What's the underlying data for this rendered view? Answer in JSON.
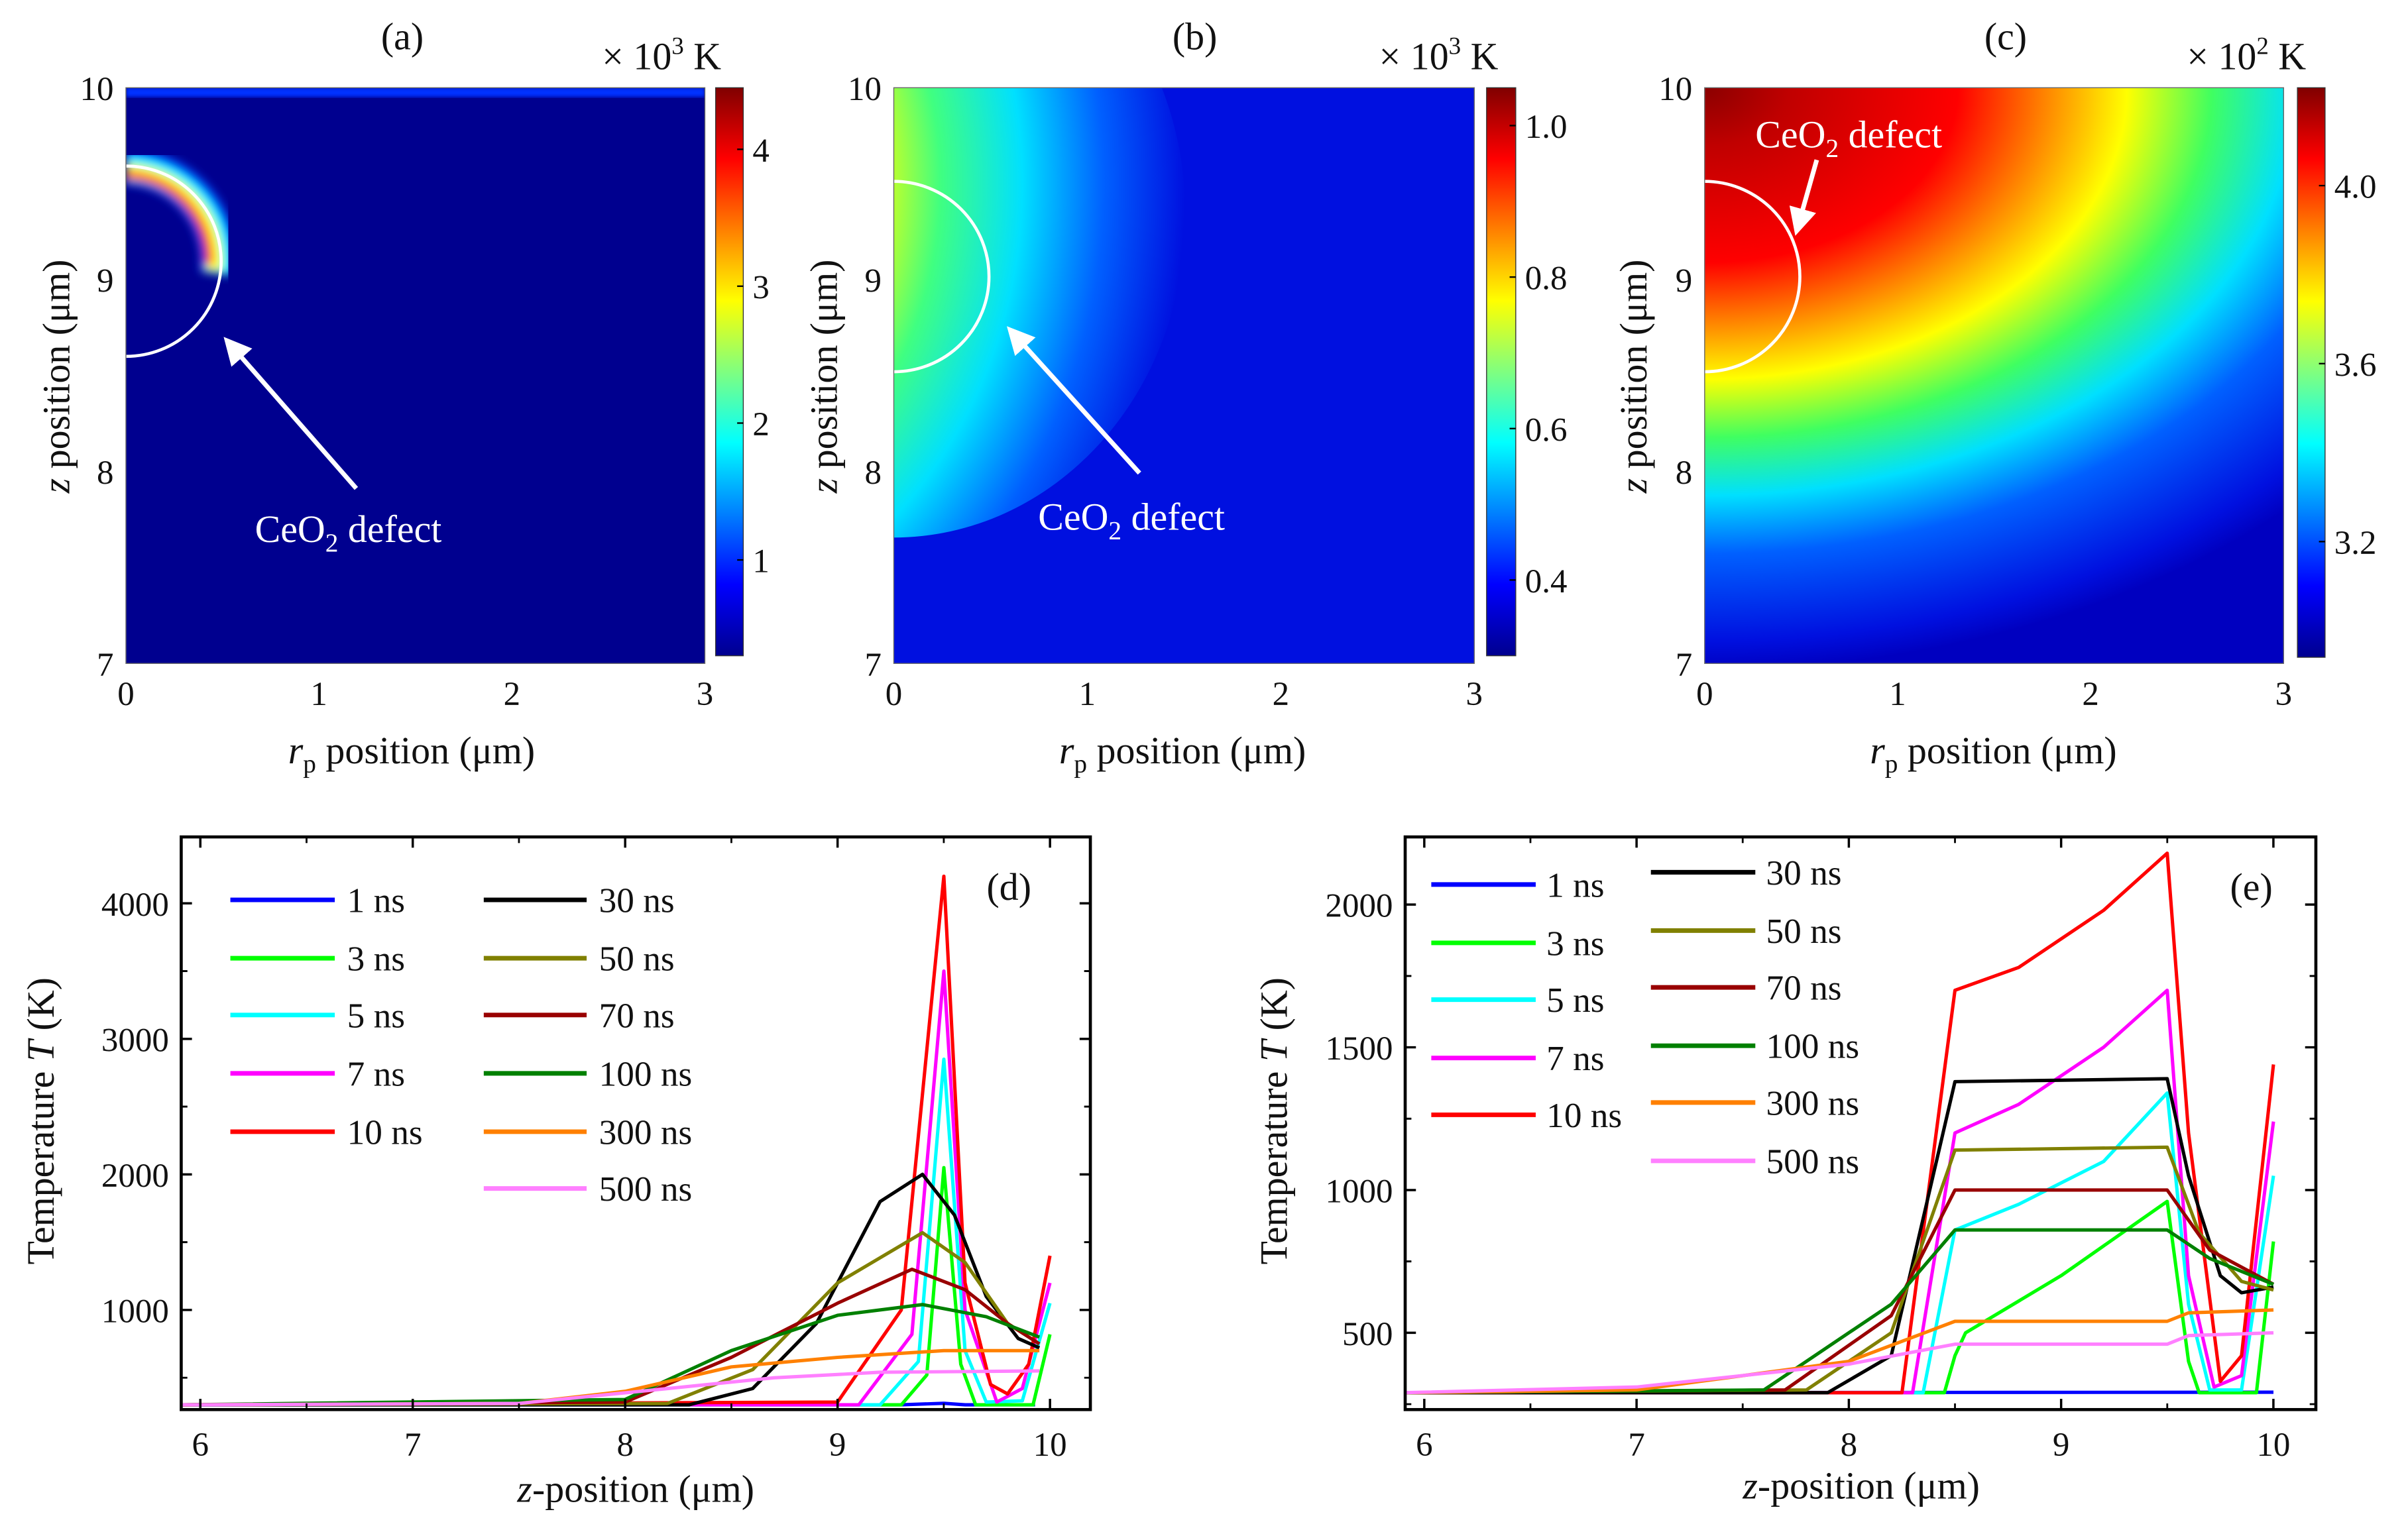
{
  "chart_data": [
    {
      "type": "heatmap",
      "panel": "(a)",
      "colorbar_unit": {
        "prefix": "× 10",
        "exp": "3",
        "suffix": " K"
      },
      "xlabel": {
        "var": "r",
        "sub": "p",
        "rest": " position (μm)"
      },
      "ylabel": {
        "var": "z",
        "rest": " position (μm)"
      },
      "xlim": [
        0,
        3
      ],
      "ylim": [
        7,
        10
      ],
      "xticks": [
        "0",
        "1",
        "2",
        "3"
      ],
      "yticks": [
        "7",
        "8",
        "9",
        "10"
      ],
      "colorbar_range": [
        0.3,
        4.45
      ],
      "colorbar_ticks": [
        "1",
        "2",
        "3",
        "4"
      ],
      "colorbar_tick_values": [
        1,
        2,
        3,
        4
      ],
      "annotation": {
        "pre": "CeO",
        "sub": "2",
        "post": " defect"
      },
      "defect_circle": {
        "center_r": 0,
        "center_z": 9.1,
        "radius": 0.5
      }
    },
    {
      "type": "heatmap",
      "panel": "(b)",
      "colorbar_unit": {
        "prefix": "× 10",
        "exp": "3",
        "suffix": " K"
      },
      "xlabel": {
        "var": "r",
        "sub": "p",
        "rest": " position (μm)"
      },
      "ylabel": {
        "var": "z",
        "rest": " position (μm)"
      },
      "xlim": [
        0,
        3
      ],
      "ylim": [
        7,
        10
      ],
      "xticks": [
        "0",
        "1",
        "2",
        "3"
      ],
      "yticks": [
        "7",
        "8",
        "9",
        "10"
      ],
      "colorbar_range": [
        0.3,
        1.05
      ],
      "colorbar_ticks": [
        "0.4",
        "0.6",
        "0.8",
        "1.0"
      ],
      "colorbar_tick_values": [
        0.4,
        0.6,
        0.8,
        1.0
      ],
      "annotation": {
        "pre": "CeO",
        "sub": "2",
        "post": " defect"
      },
      "defect_circle": {
        "center_r": 0,
        "center_z": 9.1,
        "radius": 0.5
      }
    },
    {
      "type": "heatmap",
      "panel": "(c)",
      "colorbar_unit": {
        "prefix": "× 10",
        "exp": "2",
        "suffix": " K"
      },
      "xlabel": {
        "var": "r",
        "sub": "p",
        "rest": " position (μm)"
      },
      "ylabel": {
        "var": "z",
        "rest": " position (μm)"
      },
      "xlim": [
        0,
        3
      ],
      "ylim": [
        7,
        10
      ],
      "xticks": [
        "0",
        "1",
        "2",
        "3"
      ],
      "yticks": [
        "7",
        "8",
        "9",
        "10"
      ],
      "colorbar_range": [
        2.94,
        4.22
      ],
      "colorbar_ticks": [
        "3.2",
        "3.6",
        "4.0"
      ],
      "colorbar_tick_values": [
        3.2,
        3.6,
        4.0
      ],
      "annotation": {
        "pre": "CeO",
        "sub": "2",
        "post": " defect"
      },
      "defect_circle": {
        "center_r": 0,
        "center_z": 9.1,
        "radius": 0.5
      }
    },
    {
      "type": "line",
      "panel": "(d)",
      "xlabel": {
        "var": "z",
        "rest": "-position (μm)"
      },
      "ylabel": {
        "pre": "Temperature ",
        "var": "T",
        "rest": " (K)"
      },
      "xlim": [
        5.91,
        10.19
      ],
      "ylim": [
        265,
        4490
      ],
      "xticks": [
        6,
        7,
        8,
        9,
        10
      ],
      "yticks": [
        1000,
        2000,
        3000,
        4000
      ],
      "series": [
        {
          "name": "1 ns",
          "color": "#0000ff",
          "points": [
            [
              5.9,
              300
            ],
            [
              9.3,
              300
            ],
            [
              9.5,
              312
            ],
            [
              9.6,
              300
            ],
            [
              9.93,
              300
            ]
          ]
        },
        {
          "name": "3 ns",
          "color": "#00ff00",
          "points": [
            [
              5.9,
              300
            ],
            [
              9.3,
              300
            ],
            [
              9.42,
              520
            ],
            [
              9.5,
              2050
            ],
            [
              9.58,
              600
            ],
            [
              9.65,
              300
            ],
            [
              9.92,
              300
            ],
            [
              10,
              820
            ]
          ]
        },
        {
          "name": "5 ns",
          "color": "#00ffff",
          "points": [
            [
              5.9,
              300
            ],
            [
              9.2,
              300
            ],
            [
              9.38,
              620
            ],
            [
              9.5,
              2850
            ],
            [
              9.6,
              700
            ],
            [
              9.7,
              320
            ],
            [
              9.87,
              330
            ],
            [
              10,
              1050
            ]
          ]
        },
        {
          "name": "7 ns",
          "color": "#ff00ff",
          "points": [
            [
              5.9,
              300
            ],
            [
              9.1,
              300
            ],
            [
              9.35,
              820
            ],
            [
              9.5,
              3500
            ],
            [
              9.6,
              1000
            ],
            [
              9.75,
              320
            ],
            [
              9.87,
              420
            ],
            [
              10,
              1200
            ]
          ]
        },
        {
          "name": "10 ns",
          "color": "#ff0000",
          "points": [
            [
              5.9,
              300
            ],
            [
              9.0,
              320
            ],
            [
              9.3,
              1000
            ],
            [
              9.5,
              4200
            ],
            [
              9.6,
              1200
            ],
            [
              9.72,
              450
            ],
            [
              9.8,
              380
            ],
            [
              9.9,
              600
            ],
            [
              10,
              1400
            ]
          ]
        },
        {
          "name": "30 ns",
          "color": "#000000",
          "points": [
            [
              5.9,
              300
            ],
            [
              8.3,
              300
            ],
            [
              8.6,
              420
            ],
            [
              8.9,
              900
            ],
            [
              9.2,
              1800
            ],
            [
              9.4,
              2000
            ],
            [
              9.55,
              1700
            ],
            [
              9.7,
              1100
            ],
            [
              9.85,
              790
            ],
            [
              9.95,
              720
            ]
          ]
        },
        {
          "name": "50 ns",
          "color": "#808000",
          "points": [
            [
              5.9,
              300
            ],
            [
              8.2,
              310
            ],
            [
              8.6,
              560
            ],
            [
              9.0,
              1200
            ],
            [
              9.4,
              1570
            ],
            [
              9.6,
              1350
            ],
            [
              9.8,
              900
            ],
            [
              9.95,
              750
            ]
          ]
        },
        {
          "name": "70 ns",
          "color": "#990000",
          "points": [
            [
              5.9,
              300
            ],
            [
              8.0,
              320
            ],
            [
              8.5,
              650
            ],
            [
              9.0,
              1050
            ],
            [
              9.35,
              1300
            ],
            [
              9.6,
              1150
            ],
            [
              9.8,
              900
            ],
            [
              9.95,
              750
            ]
          ]
        },
        {
          "name": "100 ns",
          "color": "#008000",
          "points": [
            [
              5.9,
              300
            ],
            [
              8.0,
              340
            ],
            [
              8.5,
              700
            ],
            [
              9.0,
              960
            ],
            [
              9.4,
              1040
            ],
            [
              9.7,
              950
            ],
            [
              9.95,
              800
            ]
          ]
        },
        {
          "name": "300 ns",
          "color": "#ff8000",
          "points": [
            [
              5.9,
              300
            ],
            [
              7.5,
              310
            ],
            [
              8.0,
              400
            ],
            [
              8.5,
              580
            ],
            [
              9.0,
              650
            ],
            [
              9.5,
              700
            ],
            [
              9.95,
              700
            ]
          ]
        },
        {
          "name": "500 ns",
          "color": "#ff80ff",
          "points": [
            [
              5.9,
              300
            ],
            [
              7.5,
              310
            ],
            [
              8.2,
              420
            ],
            [
              8.7,
              500
            ],
            [
              9.2,
              540
            ],
            [
              9.95,
              550
            ]
          ]
        }
      ]
    },
    {
      "type": "line",
      "panel": "(e)",
      "xlabel": {
        "var": "z",
        "rest": "-position (μm)"
      },
      "ylabel": {
        "pre": "Temperature ",
        "var": "T",
        "rest": " (K)"
      },
      "xlim": [
        5.91,
        10.2
      ],
      "ylim": [
        231,
        2237
      ],
      "xticks": [
        6,
        7,
        8,
        9,
        10
      ],
      "yticks": [
        500,
        1000,
        1500,
        2000
      ],
      "series": [
        {
          "name": "1 ns",
          "color": "#0000ff",
          "points": [
            [
              5.9,
              290
            ],
            [
              10,
              292
            ]
          ]
        },
        {
          "name": "3 ns",
          "color": "#00ff00",
          "points": [
            [
              5.9,
              290
            ],
            [
              8.45,
              290
            ],
            [
              8.5,
              420
            ],
            [
              8.55,
              500
            ],
            [
              9.0,
              700
            ],
            [
              9.5,
              960
            ],
            [
              9.6,
              400
            ],
            [
              9.65,
              290
            ],
            [
              9.92,
              290
            ],
            [
              10,
              820
            ]
          ]
        },
        {
          "name": "5 ns",
          "color": "#00ffff",
          "points": [
            [
              5.9,
              290
            ],
            [
              8.35,
              290
            ],
            [
              8.5,
              860
            ],
            [
              8.8,
              950
            ],
            [
              9.2,
              1100
            ],
            [
              9.5,
              1340
            ],
            [
              9.6,
              600
            ],
            [
              9.7,
              300
            ],
            [
              9.85,
              300
            ],
            [
              10,
              1050
            ]
          ]
        },
        {
          "name": "7 ns",
          "color": "#ff00ff",
          "points": [
            [
              5.9,
              290
            ],
            [
              8.3,
              290
            ],
            [
              8.5,
              1200
            ],
            [
              8.8,
              1300
            ],
            [
              9.2,
              1500
            ],
            [
              9.5,
              1700
            ],
            [
              9.6,
              700
            ],
            [
              9.72,
              310
            ],
            [
              9.85,
              350
            ],
            [
              10,
              1240
            ]
          ]
        },
        {
          "name": "10 ns",
          "color": "#ff0000",
          "points": [
            [
              5.9,
              290
            ],
            [
              8.25,
              290
            ],
            [
              8.5,
              1700
            ],
            [
              8.8,
              1780
            ],
            [
              9.2,
              1980
            ],
            [
              9.5,
              2180
            ],
            [
              9.6,
              1200
            ],
            [
              9.75,
              330
            ],
            [
              9.85,
              420
            ],
            [
              10,
              1440
            ]
          ]
        },
        {
          "name": "30 ns",
          "color": "#000000",
          "points": [
            [
              5.9,
              290
            ],
            [
              7.9,
              290
            ],
            [
              8.2,
              420
            ],
            [
              8.5,
              1380
            ],
            [
              9.5,
              1390
            ],
            [
              9.6,
              1050
            ],
            [
              9.75,
              700
            ],
            [
              9.85,
              640
            ],
            [
              10,
              660
            ]
          ]
        },
        {
          "name": "50 ns",
          "color": "#808000",
          "points": [
            [
              5.9,
              290
            ],
            [
              7.8,
              300
            ],
            [
              8.2,
              500
            ],
            [
              8.5,
              1140
            ],
            [
              9.5,
              1150
            ],
            [
              9.65,
              850
            ],
            [
              9.85,
              680
            ],
            [
              10,
              650
            ]
          ]
        },
        {
          "name": "70 ns",
          "color": "#990000",
          "points": [
            [
              5.9,
              290
            ],
            [
              7.7,
              300
            ],
            [
              8.2,
              560
            ],
            [
              8.5,
              1000
            ],
            [
              9.5,
              1000
            ],
            [
              9.7,
              790
            ],
            [
              10,
              670
            ]
          ]
        },
        {
          "name": "100 ns",
          "color": "#008000",
          "points": [
            [
              5.9,
              290
            ],
            [
              7.6,
              300
            ],
            [
              8.2,
              600
            ],
            [
              8.5,
              860
            ],
            [
              9.5,
              860
            ],
            [
              9.7,
              760
            ],
            [
              10,
              670
            ]
          ]
        },
        {
          "name": "300 ns",
          "color": "#ff8000",
          "points": [
            [
              5.9,
              290
            ],
            [
              7.0,
              300
            ],
            [
              8.0,
              400
            ],
            [
              8.5,
              540
            ],
            [
              9.5,
              540
            ],
            [
              9.6,
              570
            ],
            [
              10,
              580
            ]
          ]
        },
        {
          "name": "500 ns",
          "color": "#ff80ff",
          "points": [
            [
              5.9,
              290
            ],
            [
              7.0,
              310
            ],
            [
              8.0,
              390
            ],
            [
              8.5,
              460
            ],
            [
              9.5,
              460
            ],
            [
              9.6,
              490
            ],
            [
              10,
              500
            ]
          ]
        }
      ]
    }
  ]
}
